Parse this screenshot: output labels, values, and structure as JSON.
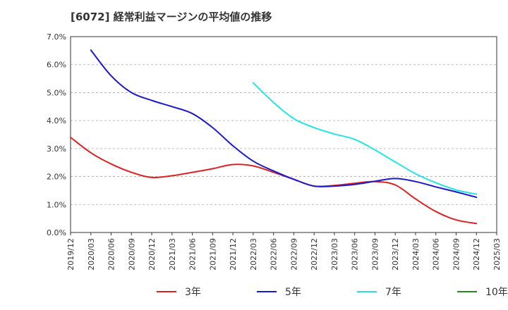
{
  "chart_data": {
    "type": "line",
    "title": "[6072]  経常利益マージンの平均値の推移",
    "xlabel": "",
    "ylabel": "",
    "ylim": [
      0.0,
      7.0
    ],
    "y_ticks": [
      "0.0%",
      "1.0%",
      "2.0%",
      "3.0%",
      "4.0%",
      "5.0%",
      "6.0%",
      "7.0%"
    ],
    "x_ticks": [
      "2019/12",
      "2020/03",
      "2020/06",
      "2020/09",
      "2020/12",
      "2021/03",
      "2021/06",
      "2021/09",
      "2021/12",
      "2022/03",
      "2022/06",
      "2022/09",
      "2022/12",
      "2023/03",
      "2023/06",
      "2023/09",
      "2023/12",
      "2024/03",
      "2024/06",
      "2024/09",
      "2024/12",
      "2025/03"
    ],
    "grid": "horizontal dashed",
    "legend_position": "bottom",
    "series": [
      {
        "name": "3年",
        "color": "#dd2222",
        "points": [
          {
            "x": "2019/12",
            "y": 3.4
          },
          {
            "x": "2020/03",
            "y": 2.85
          },
          {
            "x": "2020/06",
            "y": 2.45
          },
          {
            "x": "2020/09",
            "y": 2.15
          },
          {
            "x": "2020/12",
            "y": 1.97
          },
          {
            "x": "2021/03",
            "y": 2.03
          },
          {
            "x": "2021/06",
            "y": 2.15
          },
          {
            "x": "2021/09",
            "y": 2.28
          },
          {
            "x": "2021/12",
            "y": 2.43
          },
          {
            "x": "2022/03",
            "y": 2.38
          },
          {
            "x": "2022/06",
            "y": 2.15
          },
          {
            "x": "2022/09",
            "y": 1.9
          },
          {
            "x": "2022/12",
            "y": 1.66
          },
          {
            "x": "2023/03",
            "y": 1.68
          },
          {
            "x": "2023/06",
            "y": 1.76
          },
          {
            "x": "2023/09",
            "y": 1.82
          },
          {
            "x": "2023/12",
            "y": 1.7
          },
          {
            "x": "2024/03",
            "y": 1.2
          },
          {
            "x": "2024/06",
            "y": 0.75
          },
          {
            "x": "2024/09",
            "y": 0.45
          },
          {
            "x": "2024/12",
            "y": 0.32
          }
        ]
      },
      {
        "name": "5年",
        "color": "#1a1acc",
        "points": [
          {
            "x": "2020/03",
            "y": 6.52
          },
          {
            "x": "2020/06",
            "y": 5.6
          },
          {
            "x": "2020/09",
            "y": 5.0
          },
          {
            "x": "2020/12",
            "y": 4.72
          },
          {
            "x": "2021/03",
            "y": 4.5
          },
          {
            "x": "2021/06",
            "y": 4.25
          },
          {
            "x": "2021/09",
            "y": 3.75
          },
          {
            "x": "2021/12",
            "y": 3.1
          },
          {
            "x": "2022/03",
            "y": 2.55
          },
          {
            "x": "2022/06",
            "y": 2.2
          },
          {
            "x": "2022/09",
            "y": 1.9
          },
          {
            "x": "2022/12",
            "y": 1.66
          },
          {
            "x": "2023/03",
            "y": 1.66
          },
          {
            "x": "2023/06",
            "y": 1.72
          },
          {
            "x": "2023/09",
            "y": 1.83
          },
          {
            "x": "2023/12",
            "y": 1.93
          },
          {
            "x": "2024/03",
            "y": 1.82
          },
          {
            "x": "2024/06",
            "y": 1.63
          },
          {
            "x": "2024/09",
            "y": 1.45
          },
          {
            "x": "2024/12",
            "y": 1.26
          }
        ]
      },
      {
        "name": "7年",
        "color": "#22e5e5",
        "points": [
          {
            "x": "2022/03",
            "y": 5.35
          },
          {
            "x": "2022/06",
            "y": 4.65
          },
          {
            "x": "2022/09",
            "y": 4.07
          },
          {
            "x": "2022/12",
            "y": 3.75
          },
          {
            "x": "2023/03",
            "y": 3.52
          },
          {
            "x": "2023/06",
            "y": 3.33
          },
          {
            "x": "2023/09",
            "y": 2.95
          },
          {
            "x": "2023/12",
            "y": 2.52
          },
          {
            "x": "2024/03",
            "y": 2.1
          },
          {
            "x": "2024/06",
            "y": 1.78
          },
          {
            "x": "2024/09",
            "y": 1.52
          },
          {
            "x": "2024/12",
            "y": 1.37
          }
        ]
      },
      {
        "name": "10年",
        "color": "#228B22",
        "points": []
      }
    ]
  }
}
